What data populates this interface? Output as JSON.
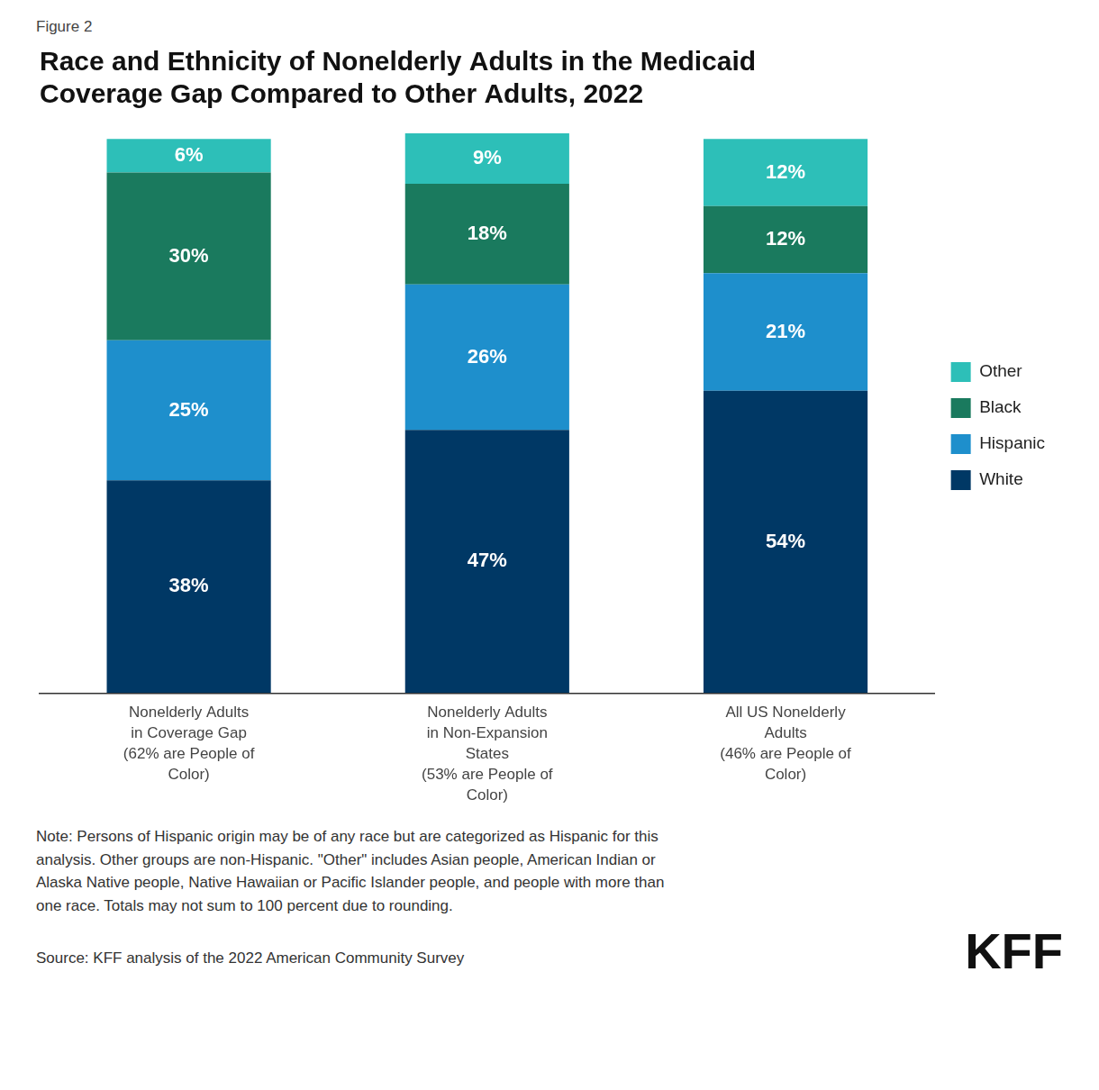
{
  "chart_data": {
    "type": "bar",
    "title": "Race and Ethnicity of Nonelderly Adults in the Medicaid\nCoverage Gap Compared to Other Adults, 2022",
    "categories": [
      "Nonelderly Adults\nin Coverage Gap\n(62% are People of\nColor)",
      "Nonelderly Adults\nin Non-Expansion\nStates\n(53% are People of\nColor)",
      "All US Nonelderly\nAdults\n(46% are People of\nColor)"
    ],
    "series": [
      {
        "name": "White",
        "color": "#003865",
        "values": [
          38,
          47,
          54
        ],
        "value_labels": [
          "38%",
          "47%",
          "54%"
        ]
      },
      {
        "name": "Hispanic",
        "color": "#1E8FCC",
        "values": [
          25,
          26,
          21
        ],
        "value_labels": [
          "25%",
          "26%",
          "21%"
        ]
      },
      {
        "name": "Black",
        "color": "#1A7A5E",
        "values": [
          30,
          18,
          12
        ],
        "value_labels": [
          "30%",
          "18%",
          "12%"
        ]
      },
      {
        "name": "Other",
        "color": "#2DBFB8",
        "values": [
          6,
          9,
          12
        ],
        "value_labels": [
          "6%",
          "9%",
          "12%"
        ]
      }
    ],
    "stacked": true,
    "data_labels": true,
    "ylim": [
      0,
      100
    ],
    "grid": false,
    "legend": "right",
    "tick_labels": "x",
    "annotations": [
      "Figure 2",
      "Note: Persons of Hispanic origin may be of any race but are categorized as Hispanic for this\nanalysis. Other groups are non-Hispanic. \"Other\" includes Asian people, American Indian or\nAlaska Native people, Native Hawaiian or Pacific Islander people, and people with more than\none race. Totals may not sum to 100 percent due to rounding.",
      "Source: KFF analysis of the 2022 American Community Survey",
      "KFF"
    ]
  }
}
